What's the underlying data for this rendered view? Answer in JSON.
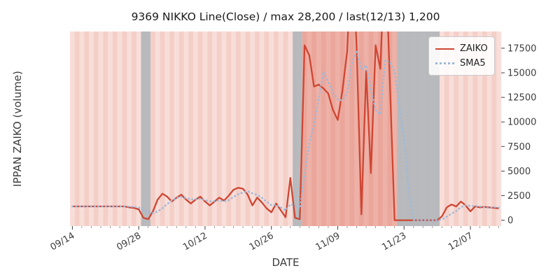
{
  "chart_data": {
    "type": "line",
    "title": "9369 NIKKO Line(Close) / max 28,200 / last(12/13) 1,200",
    "xlabel": "DATE",
    "ylabel": "IPPAN ZAIKO (volume)",
    "legend_position": "upper right",
    "grid": false,
    "y_axis_side": "right",
    "x_tick_labels": [
      "09/14",
      "09/28",
      "10/12",
      "10/26",
      "11/09",
      "11/23",
      "12/07"
    ],
    "y_ticks": [
      0,
      2500,
      5000,
      7500,
      10000,
      12500,
      15000,
      17500
    ],
    "ylim": [
      -600,
      19200
    ],
    "dates": [
      "09/14",
      "09/15",
      "09/16",
      "09/17",
      "09/18",
      "09/19",
      "09/20",
      "09/21",
      "09/22",
      "09/23",
      "09/24",
      "09/25",
      "09/26",
      "09/27",
      "09/28",
      "09/29",
      "09/30",
      "10/01",
      "10/02",
      "10/03",
      "10/04",
      "10/05",
      "10/06",
      "10/07",
      "10/08",
      "10/09",
      "10/10",
      "10/11",
      "10/12",
      "10/13",
      "10/14",
      "10/15",
      "10/16",
      "10/17",
      "10/18",
      "10/19",
      "10/20",
      "10/21",
      "10/22",
      "10/23",
      "10/24",
      "10/25",
      "10/26",
      "10/27",
      "10/28",
      "10/29",
      "10/30",
      "10/31",
      "11/01",
      "11/02",
      "11/03",
      "11/04",
      "11/05",
      "11/06",
      "11/07",
      "11/08",
      "11/09",
      "11/10",
      "11/11",
      "11/12",
      "11/13",
      "11/14",
      "11/15",
      "11/16",
      "11/17",
      "11/18",
      "11/19",
      "11/20",
      "11/21",
      "11/22",
      "11/23",
      "11/24",
      "11/25",
      "11/26",
      "11/27",
      "11/28",
      "11/29",
      "11/30",
      "12/01",
      "12/02",
      "12/03",
      "12/04",
      "12/05",
      "12/06",
      "12/07",
      "12/08",
      "12/09",
      "12/10",
      "12/11",
      "12/12",
      "12/13"
    ],
    "series": [
      {
        "name": "ZAIKO",
        "style": "solid",
        "color": "#ce4632",
        "values": [
          1400,
          1400,
          1400,
          1400,
          1400,
          1400,
          1400,
          1400,
          1400,
          1400,
          1400,
          1400,
          1300,
          1250,
          1100,
          250,
          100,
          900,
          2100,
          2700,
          2400,
          1900,
          2300,
          2600,
          2100,
          1700,
          2100,
          2400,
          1900,
          1500,
          1900,
          2300,
          2000,
          2500,
          3100,
          3300,
          3200,
          2600,
          1500,
          2300,
          1800,
          1200,
          800,
          1700,
          1000,
          300,
          4300,
          250,
          100,
          17800,
          16800,
          13600,
          13800,
          13400,
          12900,
          11200,
          10200,
          13200,
          17200,
          28200,
          17600,
          600,
          15200,
          4800,
          17800,
          15400,
          28200,
          14200,
          0,
          0,
          0,
          0,
          0,
          0,
          0,
          0,
          0,
          0,
          400,
          1300,
          1600,
          1400,
          1900,
          1500,
          900,
          1400,
          1300,
          1350,
          1300,
          1250,
          1200
        ]
      },
      {
        "name": "SMA5",
        "style": "dotted",
        "color": "#9cb9da",
        "derived": "5-day simple moving average of ZAIKO"
      }
    ],
    "bands": {
      "gray": [
        [
          "09/29",
          "09/30"
        ],
        [
          "10/31",
          "11/01"
        ],
        [
          "11/22",
          "11/30"
        ]
      ],
      "red": [
        [
          "11/02",
          "11/21"
        ]
      ]
    },
    "annotations": {
      "max": "28,200",
      "last": "last(12/13) 1,200"
    }
  },
  "colors": {
    "zaiko_line": "#ce4632",
    "sma_line": "#9cb9da",
    "stripe_light": "#f8ded9",
    "stripe_dark": "#f4cfc8",
    "band_red": "#d64834",
    "band_red_alpha": 0.3,
    "band_gray": "#b4b7bc",
    "band_gray_alpha": 0.95,
    "tick_color": "#444444",
    "label_color": "#3d3d3d",
    "title_color": "#1a1a1a"
  }
}
